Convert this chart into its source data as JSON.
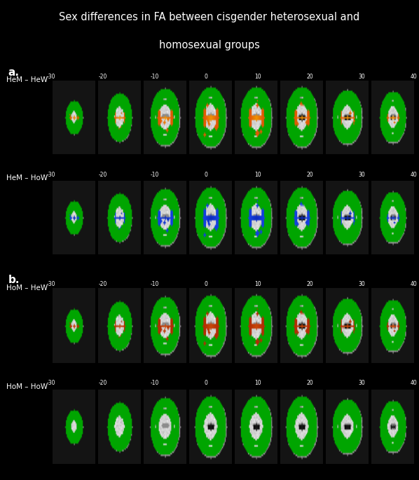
{
  "title_line1": "Sex differences in FA between cisgender heterosexual and",
  "title_line2": "homosexual groups",
  "title_fontsize": 10.5,
  "title_color": "#ffffff",
  "background_color": "#000000",
  "panel_a_label": "a.",
  "panel_b_label": "b.",
  "row_labels": [
    "HeM – HeW",
    "HeM – HoW",
    "HoM – HeW",
    "HoM – HoW"
  ],
  "z_ticks": [
    "-30",
    "-20",
    "-10",
    "0",
    "10",
    "20",
    "30",
    "40"
  ],
  "label_fontsize": 7.5,
  "tick_fontsize": 5.5,
  "panel_border_color": "#4a6a9a",
  "figure_width": 5.98,
  "figure_height": 6.85,
  "brain_bg_color": [
    0.75,
    0.75,
    0.75
  ],
  "green_color": "#00cc00",
  "orange_color": "#dd5500",
  "blue_color": "#2255ee"
}
